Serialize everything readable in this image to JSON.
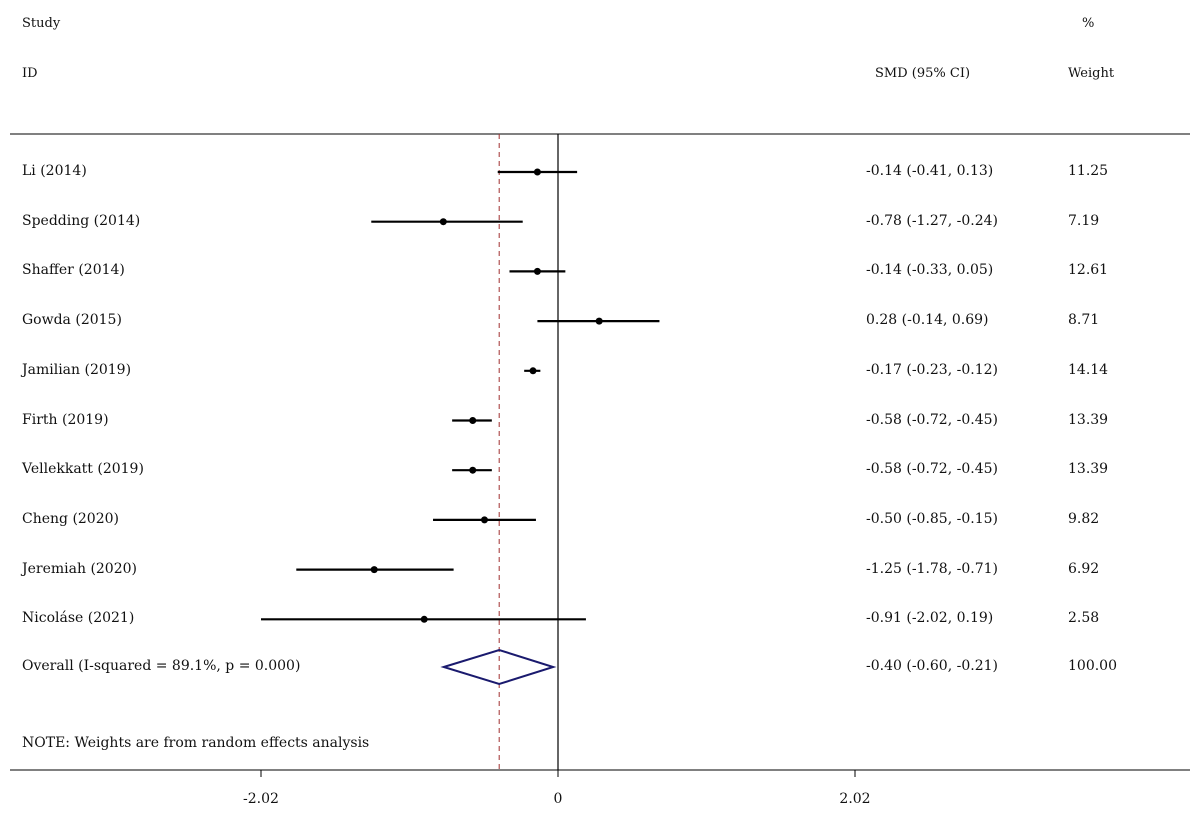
{
  "header": {
    "study_label": "Study",
    "id_label": "ID",
    "smd_label": "SMD (95% CI)",
    "pct_label": "%",
    "weight_label": "Weight"
  },
  "note": "NOTE: Weights are from random effects analysis",
  "chart_data": {
    "type": "forest",
    "title": "",
    "xlabel": "",
    "ylabel": "",
    "xlim": [
      -2.02,
      2.02
    ],
    "x_ticks": [
      -2.02,
      0,
      2.02
    ],
    "x_tick_labels": [
      "-2.02",
      "0",
      "2.02"
    ],
    "null_line": 0,
    "pooled_line": -0.4,
    "grid": false,
    "studies": [
      {
        "name": "Li (2014)",
        "smd": -0.14,
        "lo": -0.41,
        "hi": 0.13,
        "ci_text": "-0.14 (-0.41, 0.13)",
        "weight": "11.25"
      },
      {
        "name": "Spedding (2014)",
        "smd": -0.78,
        "lo": -1.27,
        "hi": -0.24,
        "ci_text": "-0.78 (-1.27, -0.24)",
        "weight": "7.19"
      },
      {
        "name": "Shaffer (2014)",
        "smd": -0.14,
        "lo": -0.33,
        "hi": 0.05,
        "ci_text": "-0.14 (-0.33, 0.05)",
        "weight": "12.61"
      },
      {
        "name": "Gowda (2015)",
        "smd": 0.28,
        "lo": -0.14,
        "hi": 0.69,
        "ci_text": "0.28 (-0.14, 0.69)",
        "weight": "8.71"
      },
      {
        "name": "Jamilian (2019)",
        "smd": -0.17,
        "lo": -0.23,
        "hi": -0.12,
        "ci_text": "-0.17 (-0.23, -0.12)",
        "weight": "14.14"
      },
      {
        "name": "Firth (2019)",
        "smd": -0.58,
        "lo": -0.72,
        "hi": -0.45,
        "ci_text": "-0.58 (-0.72, -0.45)",
        "weight": "13.39"
      },
      {
        "name": "Vellekkatt (2019)",
        "smd": -0.58,
        "lo": -0.72,
        "hi": -0.45,
        "ci_text": "-0.58 (-0.72, -0.45)",
        "weight": "13.39"
      },
      {
        "name": "Cheng (2020)",
        "smd": -0.5,
        "lo": -0.85,
        "hi": -0.15,
        "ci_text": "-0.50 (-0.85, -0.15)",
        "weight": "9.82"
      },
      {
        "name": "Jeremiah (2020)",
        "smd": -1.25,
        "lo": -1.78,
        "hi": -0.71,
        "ci_text": "-1.25 (-1.78, -0.71)",
        "weight": "6.92"
      },
      {
        "name": "Nicoláse (2021)",
        "smd": -0.91,
        "lo": -2.02,
        "hi": 0.19,
        "ci_text": "-0.91 (-2.02, 0.19)",
        "weight": "2.58"
      }
    ],
    "overall": {
      "name": "Overall  (I-squared = 89.1%, p = 0.000)",
      "smd": -0.4,
      "lo": -0.6,
      "hi": -0.21,
      "ci_text": "-0.40 (-0.60, -0.21)",
      "weight": "100.00"
    },
    "colors": {
      "line": "#000000",
      "null_line": "#000000",
      "pooled_line": "#a03030",
      "diamond": "#1a1a6e"
    }
  }
}
